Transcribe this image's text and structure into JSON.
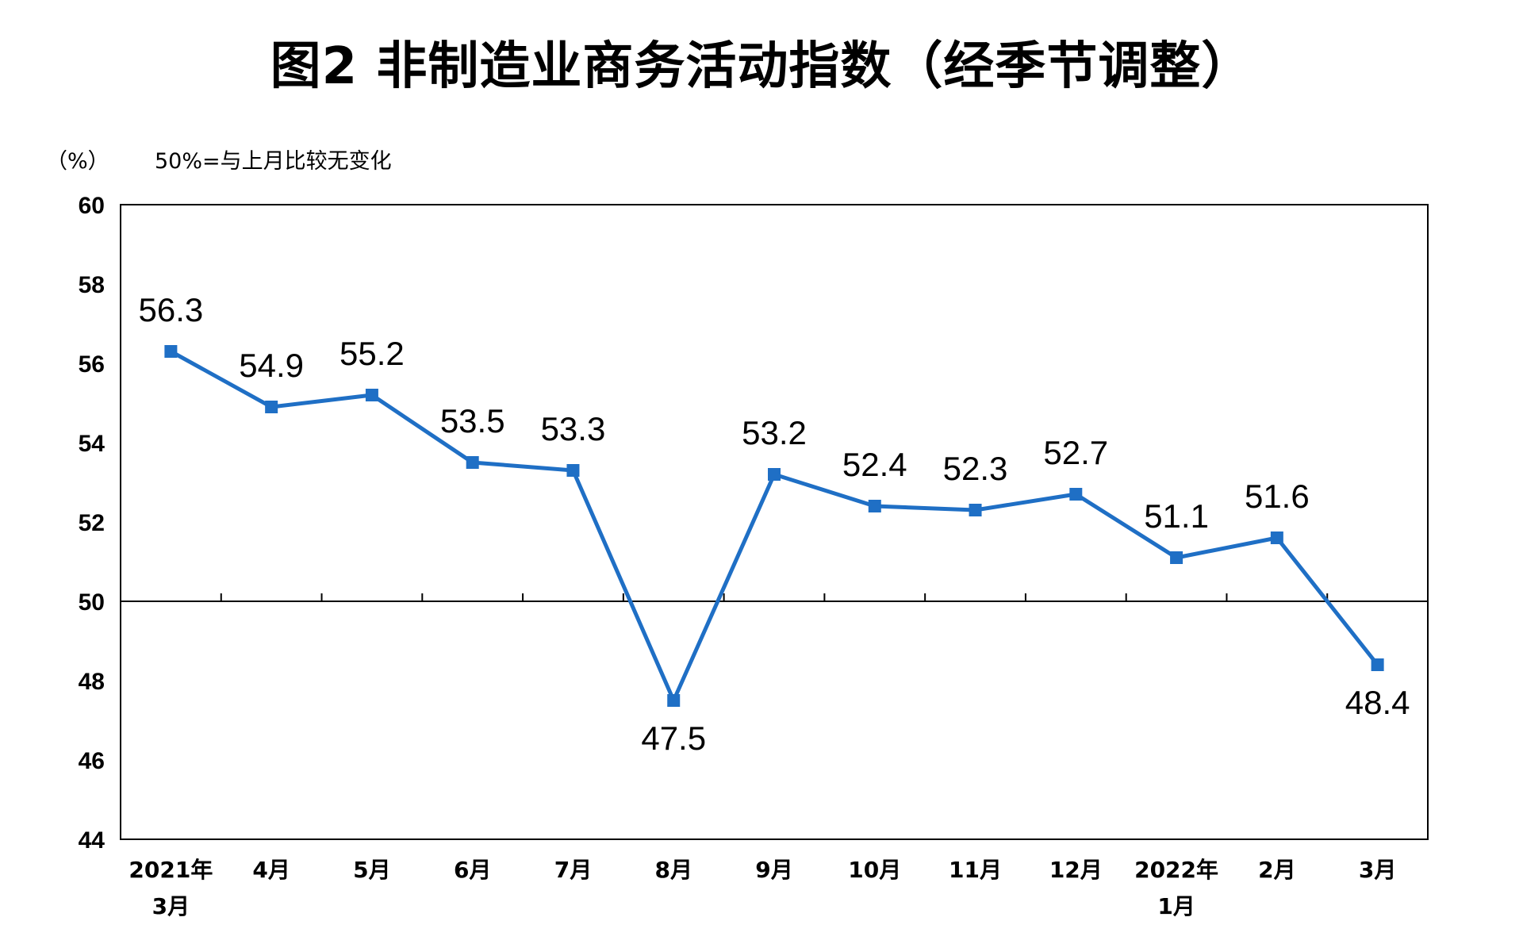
{
  "chart_data": {
    "type": "line",
    "title": "图2  非制造业商务活动指数（经季节调整）",
    "ylabel": "（%）",
    "note": "50%=与上月比较无变化",
    "ylim": [
      44,
      60
    ],
    "yticks": [
      "60",
      "58",
      "56",
      "54",
      "52",
      "50",
      "48",
      "46",
      "44"
    ],
    "categories": [
      "2021年3月",
      "4月",
      "5月",
      "6月",
      "7月",
      "8月",
      "9月",
      "10月",
      "11月",
      "12月",
      "2022年1月",
      "2月",
      "3月"
    ],
    "category_lines": [
      [
        "2021年",
        "3月"
      ],
      [
        "4月"
      ],
      [
        "5月"
      ],
      [
        "6月"
      ],
      [
        "7月"
      ],
      [
        "8月"
      ],
      [
        "9月"
      ],
      [
        "10月"
      ],
      [
        "11月"
      ],
      [
        "12月"
      ],
      [
        "2022年",
        "1月"
      ],
      [
        "2月"
      ],
      [
        "3月"
      ]
    ],
    "values": [
      56.3,
      54.9,
      55.2,
      53.5,
      53.3,
      47.5,
      53.2,
      52.4,
      52.3,
      52.7,
      51.1,
      51.6,
      48.4
    ],
    "value_labels": [
      "56.3",
      "54.9",
      "55.2",
      "53.5",
      "53.3",
      "47.5",
      "53.2",
      "52.4",
      "52.3",
      "52.7",
      "51.1",
      "51.6",
      "48.4"
    ],
    "reference_line": 50,
    "line_color": "#1f6fc5",
    "grid": false,
    "legend": "none"
  }
}
